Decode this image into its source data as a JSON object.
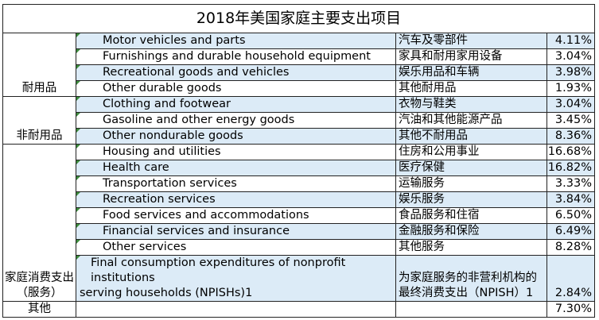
{
  "title": "2018年美国家庭主要支出项目",
  "groups": [
    {
      "label": "耐用品",
      "rows": [
        {
          "en": "Motor vehicles and parts",
          "zh": "汽车及零部件",
          "pct": "4.11%"
        },
        {
          "en": "Furnishings and durable household equipment",
          "zh": "家具和耐用家用设备",
          "pct": "3.04%"
        },
        {
          "en": "Recreational goods and vehicles",
          "zh": "娱乐用品和车辆",
          "pct": "3.98%"
        },
        {
          "en": "Other durable goods",
          "zh": "其他耐用品",
          "pct": "1.93%"
        }
      ]
    },
    {
      "label": "非耐用品",
      "rows": [
        {
          "en": "Clothing and footwear",
          "zh": "衣物与鞋类",
          "pct": "3.04%"
        },
        {
          "en": "Gasoline and other energy goods",
          "zh": "汽油和其他能源产品",
          "pct": "3.45%"
        },
        {
          "en": "Other nondurable goods",
          "zh": "其他不耐用品",
          "pct": "8.36%"
        }
      ]
    },
    {
      "label": "家庭消费支出（服务）",
      "rows": [
        {
          "en": "Housing and utilities",
          "zh": "住房和公用事业",
          "pct": "16.68%"
        },
        {
          "en": "Health care",
          "zh": "医疗保健",
          "pct": "16.82%"
        },
        {
          "en": "Transportation services",
          "zh": "运输服务",
          "pct": "3.33%"
        },
        {
          "en": "Recreation services",
          "zh": "娱乐服务",
          "pct": "3.84%"
        },
        {
          "en": "Food services and accommodations",
          "zh": "食品服务和住宿",
          "pct": "6.50%"
        },
        {
          "en": "Financial services and insurance",
          "zh": "金融服务和保险",
          "pct": "6.49%"
        },
        {
          "en": "Other services",
          "zh": "其他服务",
          "pct": "8.28%"
        },
        {
          "en_line1": "Final consumption expenditures of nonprofit institutions",
          "en_line2": "serving households (NPISHs)1",
          "zh": "为家庭服务的非营利机构的最终消费支出（NPISH）1",
          "pct": "2.84%"
        }
      ]
    },
    {
      "label": "其他",
      "rows": [
        {
          "en": "",
          "zh": "",
          "pct": "7.30%"
        }
      ]
    }
  ],
  "colors": {
    "shade": "#dcebf7",
    "marker": "#3d8b3d"
  }
}
